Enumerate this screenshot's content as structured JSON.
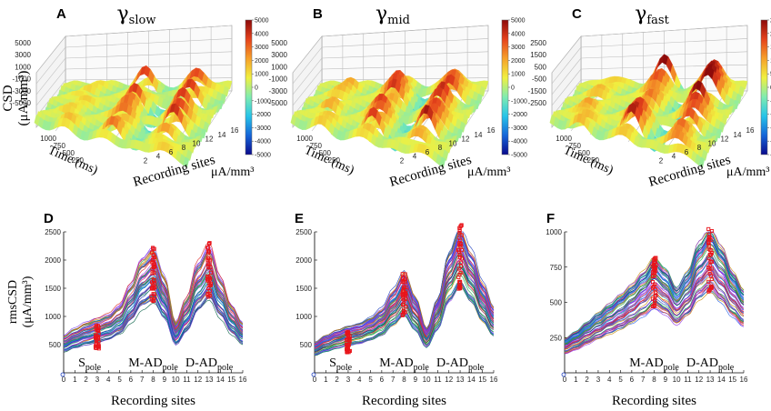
{
  "colors": {
    "colormap": [
      "#0a0a8c",
      "#1565d8",
      "#27c4e8",
      "#80ecb0",
      "#f0f040",
      "#f6a02a",
      "#e5421c",
      "#8c0a0a"
    ],
    "marker": "#e8141a",
    "trace_palette": [
      "#1f3fbf",
      "#16a34a",
      "#dc2626",
      "#7c3aed",
      "#0891b2",
      "#ca8a04",
      "#db2777",
      "#065f46",
      "#2563eb",
      "#9333ea"
    ]
  },
  "chart_data": [
    {
      "panel": "A",
      "type": "surface",
      "title": "γ",
      "title_sub": "slow",
      "zlabel": "CSD (μA/mm³)",
      "xlabel": "Recording sites",
      "ylabel": "Time (ms)",
      "z_ticks": [
        "5000",
        "3000",
        "1000",
        "-1000",
        "-3000",
        "-5000"
      ],
      "site_ticks": [
        "0",
        "2",
        "4",
        "6",
        "8",
        "10",
        "12",
        "14",
        "16"
      ],
      "time_ticks": [
        "1000",
        "750",
        "500",
        "250"
      ],
      "colorbar_ticks": [
        "5000",
        "4000",
        "3000",
        "2000",
        "1000",
        "0",
        "-1000",
        "-2000",
        "-3000",
        "-4000",
        "-5000"
      ],
      "colorbar_unit": "μA/mm³",
      "zlim": [
        -5000,
        5000
      ]
    },
    {
      "panel": "B",
      "type": "surface",
      "title": "γ",
      "title_sub": "mid",
      "zlabel": "CSD (μA/mm³)",
      "xlabel": "Recording sites",
      "ylabel": "Time (ms)",
      "z_ticks": [
        "5000",
        "3000",
        "1000",
        "-1000",
        "-3000",
        "-5000"
      ],
      "site_ticks": [
        "0",
        "2",
        "4",
        "6",
        "8",
        "10",
        "12",
        "14",
        "16"
      ],
      "time_ticks": [
        "1000",
        "750",
        "500",
        "250"
      ],
      "colorbar_ticks": [
        "5000",
        "4000",
        "3000",
        "2000",
        "1000",
        "0",
        "-1000",
        "-2000",
        "-3000",
        "-4000",
        "-5000"
      ],
      "colorbar_unit": "μA/mm³",
      "zlim": [
        -5000,
        5000
      ]
    },
    {
      "panel": "C",
      "type": "surface",
      "title": "γ",
      "title_sub": "fast",
      "zlabel": "CSD (μA/mm³)",
      "xlabel": "Recording sites",
      "ylabel": "Time (ms)",
      "z_ticks": [
        "2500",
        "1500",
        "500",
        "-500",
        "-1500",
        "-2500"
      ],
      "site_ticks": [
        "0",
        "2",
        "4",
        "6",
        "8",
        "10",
        "12",
        "14",
        "16"
      ],
      "time_ticks": [
        "1000",
        "750",
        "500",
        "250"
      ],
      "colorbar_ticks": [
        "2500",
        "2000",
        "1500",
        "1000",
        "500",
        "0",
        "-500",
        "-1000",
        "-1500",
        "-2000",
        "-2500"
      ],
      "colorbar_unit": "μA/mm³",
      "zlim": [
        -2500,
        2500
      ]
    },
    {
      "panel": "D",
      "type": "line",
      "ylabel": "rmsCSD (μA/mm³)",
      "xlabel": "Recording sites",
      "xlim": [
        0,
        16
      ],
      "ylim": [
        0,
        2500
      ],
      "x_ticks": [
        0,
        1,
        2,
        3,
        4,
        5,
        6,
        7,
        8,
        9,
        10,
        11,
        12,
        13,
        14,
        15,
        16
      ],
      "y_ticks": [
        500,
        1000,
        1500,
        2000,
        2500
      ],
      "profile_x": [
        0,
        1,
        2,
        3,
        4,
        5,
        6,
        7,
        8,
        9,
        10,
        11,
        12,
        13,
        14,
        15,
        16
      ],
      "profile_y": [
        520,
        620,
        700,
        760,
        820,
        950,
        1250,
        1600,
        1750,
        1350,
        700,
        1050,
        1550,
        1800,
        1350,
        950,
        700
      ],
      "peak_sites": [
        3,
        8,
        13
      ],
      "regions": [
        {
          "name": "S",
          "sub": "pole",
          "site": 2
        },
        {
          "name": "M-AD",
          "sub": "pole",
          "site": 8
        },
        {
          "name": "D-AD",
          "sub": "pole",
          "site": 13
        }
      ]
    },
    {
      "panel": "E",
      "type": "line",
      "ylabel": "rmsCSD (μA/mm³)",
      "xlabel": "Recording sites",
      "xlim": [
        0,
        16
      ],
      "ylim": [
        0,
        2500
      ],
      "x_ticks": [
        0,
        1,
        2,
        3,
        4,
        5,
        6,
        7,
        8,
        9,
        10,
        11,
        12,
        13,
        14,
        15,
        16
      ],
      "y_ticks": [
        500,
        1000,
        1500,
        2000,
        2500
      ],
      "profile_x": [
        0,
        1,
        2,
        3,
        4,
        5,
        6,
        7,
        8,
        9,
        10,
        11,
        12,
        13,
        14,
        15,
        16
      ],
      "profile_y": [
        420,
        520,
        600,
        660,
        700,
        780,
        900,
        1150,
        1400,
        1050,
        620,
        1050,
        1700,
        2050,
        1700,
        1250,
        900
      ],
      "peak_sites": [
        3,
        8,
        13
      ],
      "regions": [
        {
          "name": "S",
          "sub": "pole",
          "site": 2
        },
        {
          "name": "M-AD",
          "sub": "pole",
          "site": 8
        },
        {
          "name": "D-AD",
          "sub": "pole",
          "site": 13
        }
      ]
    },
    {
      "panel": "F",
      "type": "line",
      "ylabel": "",
      "xlabel": "Recording sites",
      "xlim": [
        0,
        16
      ],
      "ylim": [
        0,
        1000
      ],
      "x_ticks": [
        0,
        1,
        2,
        3,
        4,
        5,
        6,
        7,
        8,
        9,
        10,
        11,
        12,
        13,
        14,
        15,
        16
      ],
      "y_ticks": [
        250,
        500,
        750,
        1000
      ],
      "profile_x": [
        0,
        1,
        2,
        3,
        4,
        5,
        6,
        7,
        8,
        9,
        10,
        11,
        12,
        13,
        14,
        15,
        16
      ],
      "profile_y": [
        190,
        230,
        280,
        330,
        380,
        430,
        490,
        560,
        640,
        580,
        470,
        560,
        720,
        800,
        700,
        560,
        460
      ],
      "peak_sites": [
        8,
        13
      ],
      "regions": [
        {
          "name": "M-AD",
          "sub": "pole",
          "site": 8
        },
        {
          "name": "D-AD",
          "sub": "pole",
          "site": 13
        }
      ]
    }
  ]
}
